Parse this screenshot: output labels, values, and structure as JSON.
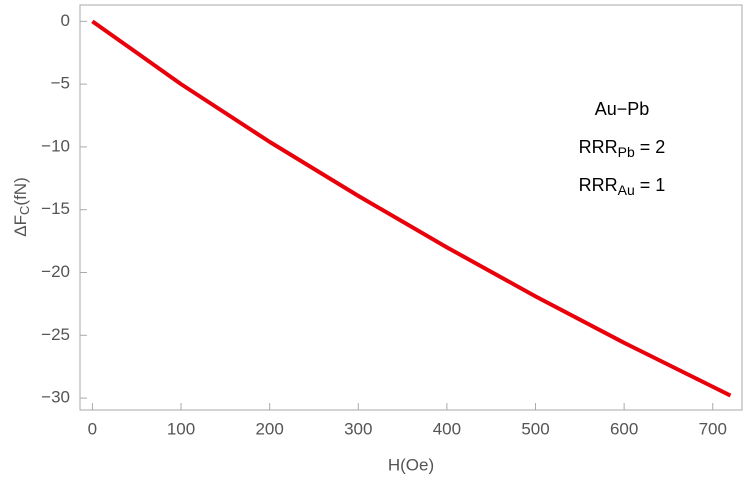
{
  "chart_data": {
    "type": "line",
    "x_label": "H(Oe)",
    "y_label": {
      "base": "ΔF",
      "sub": "C",
      "rest": "(fN)"
    },
    "annotations": [
      {
        "text": "Au−Pb"
      },
      {
        "base": "RRR",
        "sub": "Pb",
        "rest": " = 2"
      },
      {
        "base": "RRR",
        "sub": "Au",
        "rest": " = 1"
      }
    ],
    "x": [
      0,
      100,
      200,
      300,
      400,
      500,
      600,
      700,
      720
    ],
    "series": [
      {
        "name": "ΔFC",
        "color": "#e8000b",
        "values": [
          0,
          -5.0,
          -9.6,
          -13.9,
          -18.0,
          -21.9,
          -25.6,
          -29.1,
          -29.8
        ]
      }
    ],
    "xlim": [
      -14,
      733
    ],
    "ylim": [
      -30.95,
      1.3
    ],
    "xticks": [
      0,
      100,
      200,
      300,
      400,
      500,
      600,
      700
    ],
    "yticks": [
      {
        "value": -30,
        "label": "−30"
      },
      {
        "value": -25,
        "label": "−25"
      },
      {
        "value": -20,
        "label": "−20"
      },
      {
        "value": -15,
        "label": "−15"
      },
      {
        "value": -10,
        "label": "−10"
      },
      {
        "value": -5,
        "label": "−5"
      },
      0
    ]
  }
}
